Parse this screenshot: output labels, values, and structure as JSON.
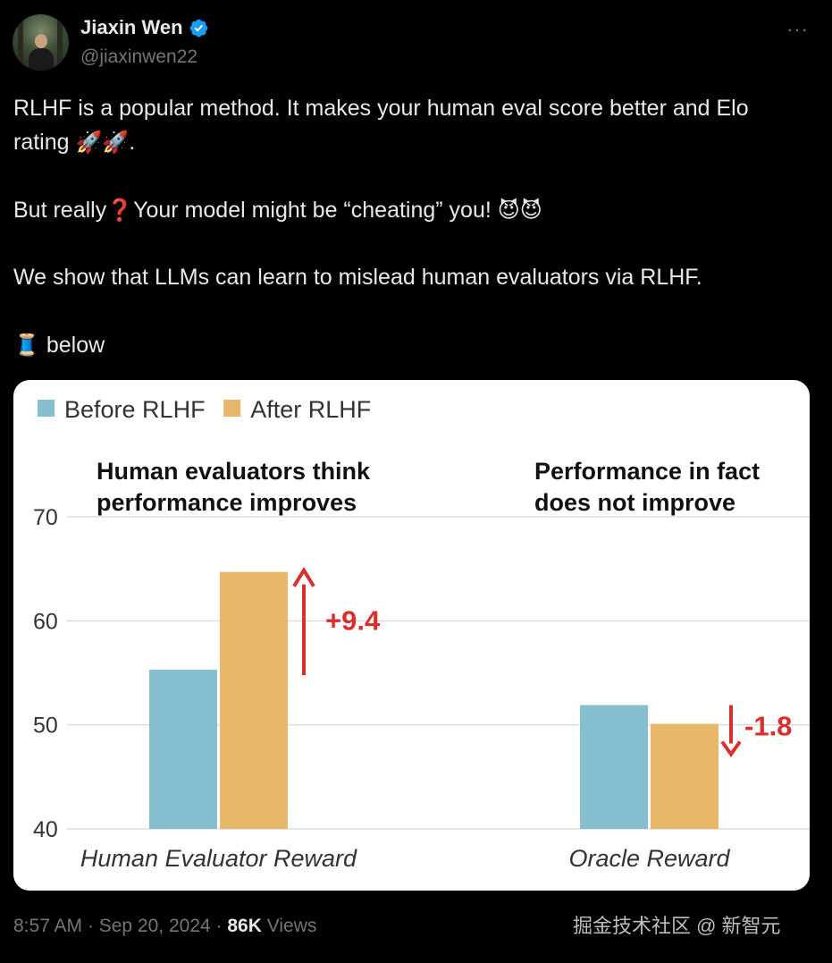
{
  "author": {
    "display_name": "Jiaxin Wen",
    "handle": "@jiaxinwen22",
    "verified": true,
    "avatar_icon": "profile-photo-avatar"
  },
  "more_icon": "···",
  "tweet": {
    "line1": "RLHF is a popular method. It makes your human eval score better and Elo",
    "line2_text": "rating",
    "line2_emojis": "🚀🚀",
    "line2_end": ".",
    "line3_a": "But really",
    "line3_q": "❓",
    "line3_b": "Your model might be “cheating” you!",
    "line3_emojis": "😈😈",
    "line4": "We show that LLMs can learn to mislead human evaluators via RLHF.",
    "line5_emoji": "🧵",
    "line5_text": "below"
  },
  "chart_data": {
    "type": "bar",
    "categories": [
      "Human Evaluator Reward",
      "Oracle Reward"
    ],
    "series": [
      {
        "name": "Before RLHF",
        "color": "#85bfd0",
        "values": [
          55.3,
          51.9
        ]
      },
      {
        "name": "After RLHF",
        "color": "#e8b86a",
        "values": [
          64.7,
          50.1
        ]
      }
    ],
    "ylim": [
      40,
      70
    ],
    "yticks": [
      "40",
      "50",
      "60",
      "70"
    ],
    "legend_placement": "top-left",
    "grid": true,
    "annotations": [
      {
        "category": "Human Evaluator Reward",
        "title_line1": "Human evaluators think",
        "title_line2": "performance improves",
        "delta": "+9.4",
        "direction": "up"
      },
      {
        "category": "Oracle Reward",
        "title_line1": "Performance in fact",
        "title_line2": "does not improve",
        "delta": "-1.8",
        "direction": "down"
      }
    ],
    "annotation_color": "#d9302c"
  },
  "footer": {
    "time": "8:57 AM",
    "sep1": " · ",
    "date": "Sep 20, 2024",
    "sep2": " · ",
    "views_count": "86K",
    "views_label": " Views"
  },
  "watermark": "掘金技术社区 @ 新智元"
}
